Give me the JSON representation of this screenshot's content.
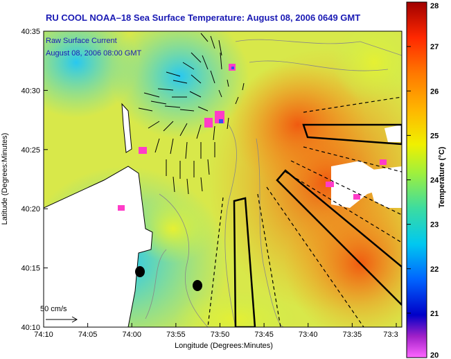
{
  "title": "RU COOL  NOAA–18  Sea Surface Temperature:  August 08, 2006 0649 GMT",
  "legend": {
    "line1": "Raw Surface Current",
    "line2": "August 08, 2006 08:00 GMT",
    "scale_label": "50 cm/s"
  },
  "axes": {
    "xlabel": "Longitude (Degrees:Minutes)",
    "ylabel": "Latitude (Degrees:Minutes)",
    "xticks": [
      "74:10",
      "74:05",
      "74:00",
      "73:55",
      "73:50",
      "73:45",
      "73:40",
      "73:35",
      "73:3"
    ],
    "yticks": [
      "40:35",
      "40:30",
      "40:25",
      "40:20",
      "40:15",
      "40:10"
    ]
  },
  "colorbar": {
    "label": "Temperature (°C)",
    "ticks": [
      "28",
      "27",
      "26",
      "25",
      "24",
      "23",
      "22",
      "21",
      "20"
    ],
    "min": 20,
    "max": 28
  },
  "colors": {
    "title_color": "#1a1ab4",
    "warm": "#f26a10",
    "cool": "#3cc8e6"
  }
}
